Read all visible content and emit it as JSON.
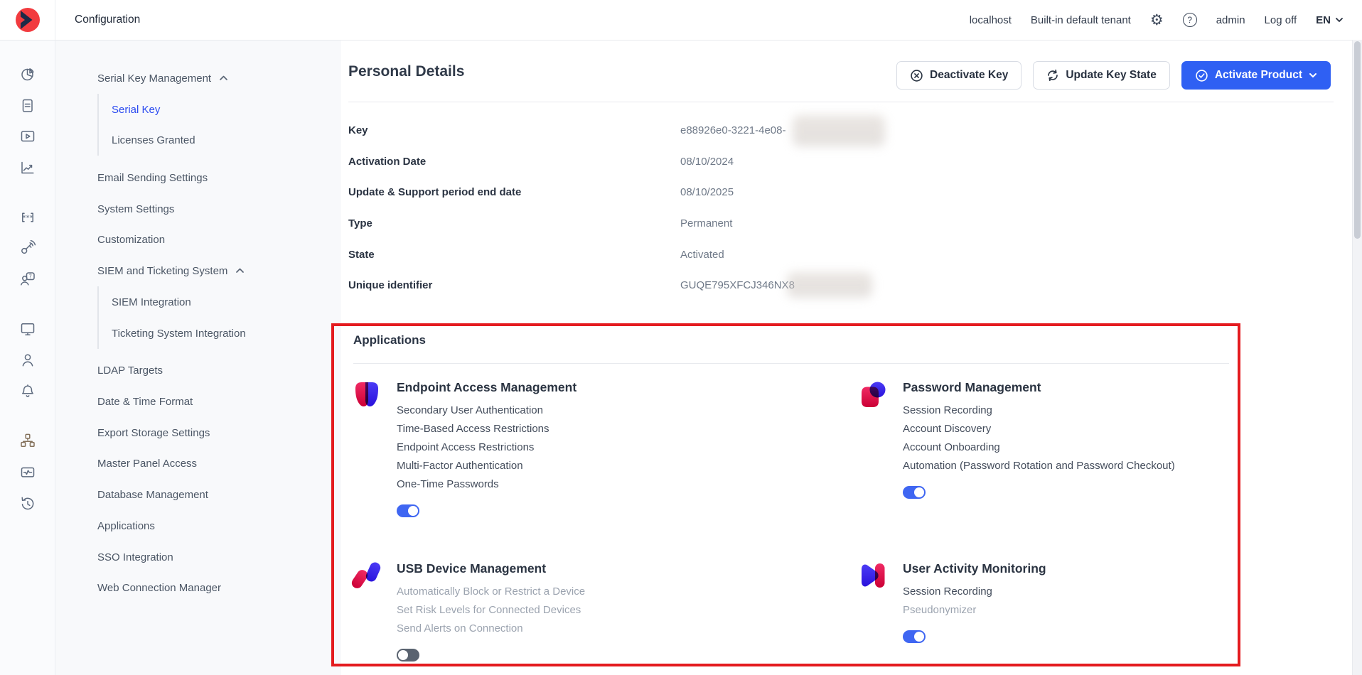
{
  "topbar": {
    "title": "Configuration",
    "host": "localhost",
    "tenant": "Built-in default tenant",
    "user": "admin",
    "logoff": "Log off",
    "language": "EN"
  },
  "icon_rail": [
    "pie-chart",
    "document",
    "video",
    "line-chart",
    "password",
    "key",
    "user-question",
    "monitor",
    "user",
    "bell",
    "sitemap",
    "health",
    "history"
  ],
  "sidebar": {
    "items": [
      {
        "label": "Serial Key Management",
        "expandable": true,
        "children": [
          {
            "label": "Serial Key",
            "active": true
          },
          {
            "label": "Licenses Granted"
          }
        ]
      },
      {
        "label": "Email Sending Settings"
      },
      {
        "label": "System Settings"
      },
      {
        "label": "Customization"
      },
      {
        "label": "SIEM and Ticketing System",
        "expandable": true,
        "children": [
          {
            "label": "SIEM Integration"
          },
          {
            "label": "Ticketing System Integration"
          }
        ]
      },
      {
        "label": "LDAP Targets"
      },
      {
        "label": "Date & Time Format"
      },
      {
        "label": "Export Storage Settings"
      },
      {
        "label": "Master Panel Access"
      },
      {
        "label": "Database Management"
      },
      {
        "label": "Applications"
      },
      {
        "label": "SSO Integration"
      },
      {
        "label": "Web Connection Manager"
      }
    ]
  },
  "main": {
    "heading": "Personal Details",
    "buttons": {
      "deactivate": "Deactivate Key",
      "update": "Update Key State",
      "activate": "Activate Product"
    },
    "details": [
      {
        "label": "Key",
        "value": "e88926e0-3221-4e08-",
        "redacted": true
      },
      {
        "label": "Activation Date",
        "value": "08/10/2024"
      },
      {
        "label": "Update & Support period end date",
        "value": "08/10/2025"
      },
      {
        "label": "Type",
        "value": "Permanent"
      },
      {
        "label": "State",
        "value": "Activated"
      },
      {
        "label": "Unique identifier",
        "value": "GUQE795XFCJ346NX8",
        "redacted": true
      }
    ],
    "applications": {
      "title": "Applications",
      "cards": [
        {
          "name": "Endpoint Access Management",
          "icon": "eam",
          "enabled": true,
          "features": [
            {
              "text": "Secondary User Authentication"
            },
            {
              "text": "Time-Based Access Restrictions"
            },
            {
              "text": "Endpoint Access Restrictions"
            },
            {
              "text": "Multi-Factor Authentication"
            },
            {
              "text": "One-Time Passwords"
            }
          ]
        },
        {
          "name": "Password Management",
          "icon": "pm",
          "enabled": true,
          "features": [
            {
              "text": "Session Recording"
            },
            {
              "text": "Account Discovery"
            },
            {
              "text": "Account Onboarding"
            },
            {
              "text": "Automation (Password Rotation and Password Checkout)"
            }
          ]
        },
        {
          "name": "USB Device Management",
          "icon": "usb",
          "enabled": false,
          "features": [
            {
              "text": "Automatically Block or Restrict a Device",
              "muted": true
            },
            {
              "text": "Set Risk Levels for Connected Devices",
              "muted": true
            },
            {
              "text": "Send Alerts on Connection",
              "muted": true
            }
          ]
        },
        {
          "name": "User Activity Monitoring",
          "icon": "uam",
          "enabled": true,
          "features": [
            {
              "text": "Session Recording"
            },
            {
              "text": "Pseudonymizer",
              "muted": true
            }
          ]
        }
      ]
    }
  },
  "colors": {
    "accent": "#2f60f3",
    "active_link": "#2b4bf0",
    "annotation": "#e41b1f",
    "toggle_on": "#3f66f2",
    "toggle_off": "#5a6370"
  }
}
